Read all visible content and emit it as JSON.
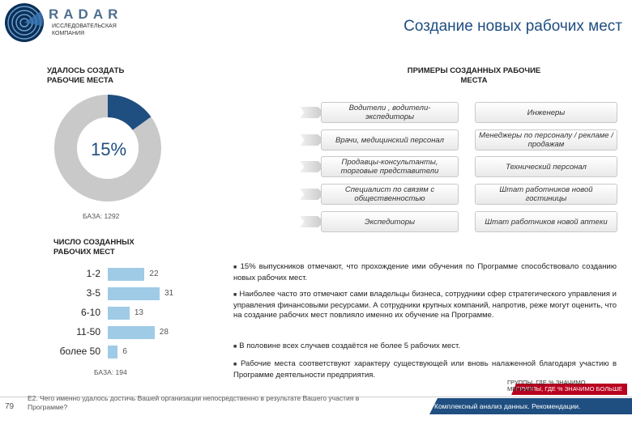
{
  "logo": {
    "word": "RADAR",
    "sub": "ИССЛЕДОВАТЕЛЬСКАЯ КОМПАНИЯ"
  },
  "title": "Создание новых рабочих мест",
  "left_header": "УДАЛОСЬ СОЗДАТЬ РАБОЧИЕ МЕСТА",
  "donut": {
    "value_percent": 15,
    "label": "15%",
    "fill_color": "#1f4e80",
    "rest_color": "#c9c9c9",
    "base": "БАЗА: 1292"
  },
  "right_header": "ПРИМЕРЫ СОЗДАННЫХ РАБОЧИЕ МЕСТА",
  "jobs": {
    "left": [
      "Водители , водители-экспедиторы",
      "Врачи, медицинский персонал",
      "Продавцы-консультанты, торговые представители",
      "Специалист по связям с общественностью",
      "Экспедиторы"
    ],
    "right": [
      "Инженеры",
      "Менеджеры по персоналу / рекламе / продажам",
      "Технический персонал",
      "Штат работников новой гостиницы",
      "Штат работников новой аптеки"
    ]
  },
  "count_header": "ЧИСЛО СОЗДАННЫХ РАБОЧИХ МЕСТ",
  "chart_data": {
    "type": "bar",
    "categories": [
      "1-2",
      "3-5",
      "6-10",
      "11-50",
      "более 50"
    ],
    "values": [
      22,
      31,
      13,
      28,
      6
    ],
    "color": "#9fcbe6",
    "base": "БАЗА: 194"
  },
  "bullets": [
    "15% выпускников отмечают, что прохождение ими обучения по Программе способствовало созданию новых рабочих мест.",
    "Наиболее часто это отмечают сами владельцы бизнеса, сотрудники сфер стратегического управления и управления финансовыми ресурсами. А сотрудники крупных компаний, напротив, реже могут оценить, что на создание рабочих мест повлияло именно их обучение на Программе.",
    "В половине всех случаев создаётся не более 5 рабочих мест.",
    "Рабочие места соответствуют характеру существующей или вновь налаженной благодаря участию в Программе деятельности предприятия."
  ],
  "legend": {
    "more": "ГРУППЫ, ГДЕ % ЗНАЧИМО БОЛЬШЕ",
    "less": "ГРУППЫ, ГДЕ % ЗНАЧИМО МЕНЬШЕ"
  },
  "footer": {
    "page": "79",
    "question": "E2. Чего именно удалось достичь Вашей организации непосредственно в результате Вашего участия в Программе?",
    "section": "Комплексный анализ данных. Рекомендации."
  }
}
